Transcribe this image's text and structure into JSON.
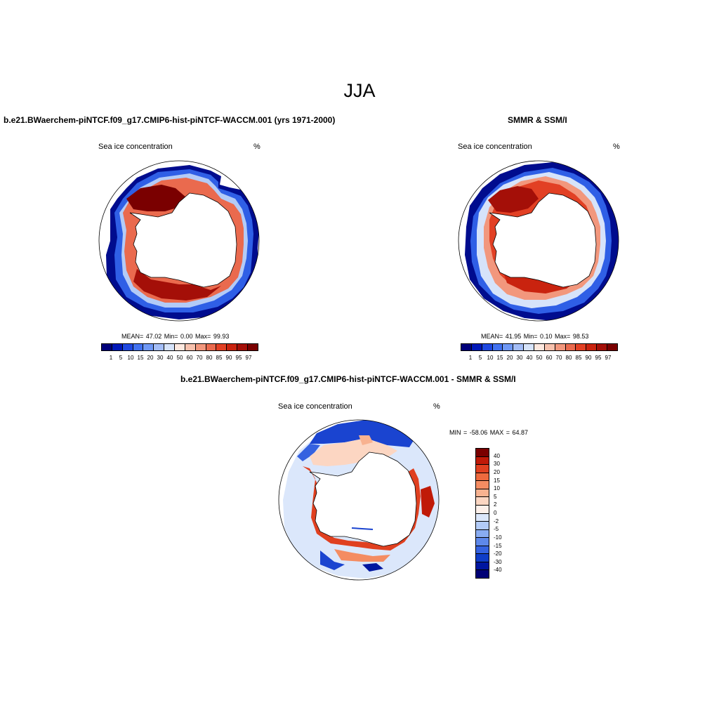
{
  "season_title": "JJA",
  "panels": [
    {
      "title": "b.e21.BWaerchem-piNTCF.f09_g17.CMIP6-hist-piNTCF-WACCM.001 (yrs 1971-2000)",
      "variable": "Sea ice concentration",
      "units": "%",
      "stats": "MEAN=  47.02  Min=   0.00  Max=  99.93"
    },
    {
      "title": "SMMR & SSM/I",
      "variable": "Sea ice concentration",
      "units": "%",
      "stats": "MEAN=  41.95  Min=   0.10  Max=  98.53"
    },
    {
      "title": "b.e21.BWaerchem-piNTCF.f09_g17.CMIP6-hist-piNTCF-WACCM.001 - SMMR & SSM/I",
      "variable": "Sea ice concentration",
      "units": "%",
      "stats": "MIN = -58.06 MAX =  64.87"
    }
  ],
  "colorbar_concentration": {
    "labels": [
      "1",
      "5",
      "10",
      "15",
      "20",
      "30",
      "40",
      "50",
      "60",
      "70",
      "80",
      "85",
      "90",
      "95",
      "97"
    ],
    "colors": [
      "#00007a",
      "#0018b8",
      "#1f48e0",
      "#4272f0",
      "#6f98f5",
      "#a3bdf7",
      "#d6e3fa",
      "#fde8df",
      "#f7c1ad",
      "#f2977d",
      "#ea6a4e",
      "#e24024",
      "#c9230f",
      "#a40f08",
      "#7a0000"
    ]
  },
  "colorbar_difference": {
    "labels": [
      "40",
      "30",
      "20",
      "15",
      "10",
      "5",
      "2",
      "0",
      "-2",
      "-5",
      "-10",
      "-15",
      "-20",
      "-30",
      "-40"
    ],
    "colors": [
      "#7a0000",
      "#c01a08",
      "#e04020",
      "#ee6a3e",
      "#f48c62",
      "#f8b290",
      "#fcd6c2",
      "#fdf0ea",
      "#dbe7fb",
      "#b2cbf7",
      "#89acf1",
      "#5e88ea",
      "#3562e0",
      "#0f3dc8",
      "#0016a0",
      "#000075"
    ]
  }
}
